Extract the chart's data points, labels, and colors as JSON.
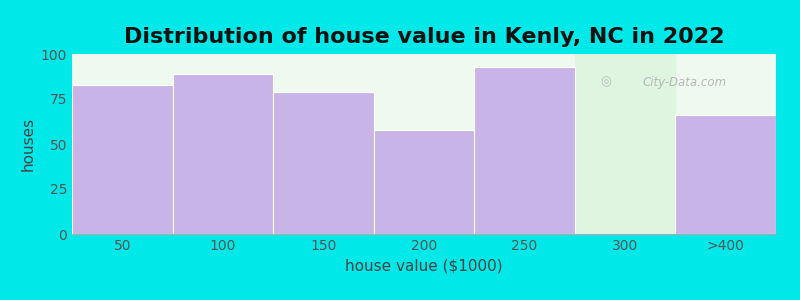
{
  "title": "Distribution of house value in Kenly, NC in 2022",
  "xlabel": "house value ($1000)",
  "ylabel": "houses",
  "categories": [
    "50",
    "100",
    "150",
    "200",
    "250",
    "300",
    ">400"
  ],
  "values": [
    83,
    89,
    79,
    58,
    93,
    0,
    66
  ],
  "bar_color": "#c9b4e8",
  "bar_edge_color": "#c9b4e8",
  "background_color": "#00e8e8",
  "plot_bg_color": "#eefaf0",
  "highlight_bg_color": "#dff5df",
  "ylim": [
    0,
    100
  ],
  "yticks": [
    0,
    25,
    50,
    75,
    100
  ],
  "title_fontsize": 16,
  "axis_label_fontsize": 11,
  "tick_fontsize": 10,
  "watermark_text": "City-Data.com"
}
